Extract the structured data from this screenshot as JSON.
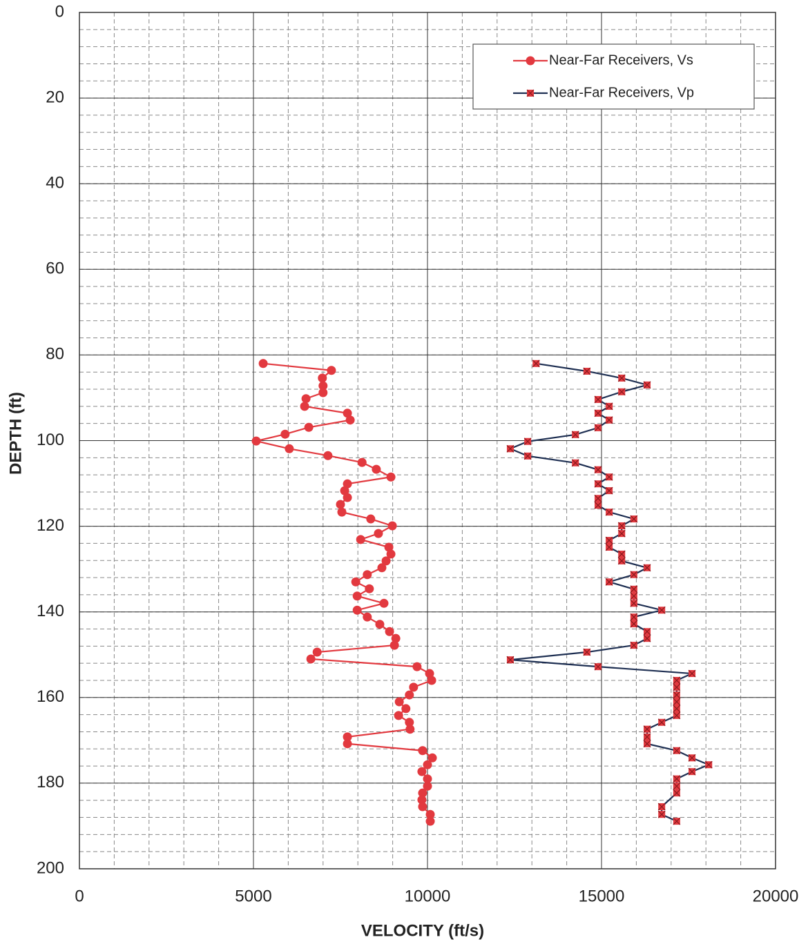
{
  "chart_data": {
    "type": "line",
    "x_label": "VELOCITY (ft/s)",
    "y_label": "DEPTH (ft)",
    "xlim": [
      0,
      20000
    ],
    "xticks": [
      0,
      5000,
      10000,
      15000,
      20000
    ],
    "ylim": [
      0,
      200
    ],
    "yticks": [
      0,
      20,
      40,
      60,
      80,
      100,
      120,
      140,
      160,
      180,
      200
    ],
    "y_inverted": true,
    "grid": true,
    "minor_grid": {
      "x": 1000,
      "y": 4
    },
    "legend": "top-right",
    "series": [
      {
        "name": "Near-Far Receivers, Vs",
        "color": "#e2393f",
        "marker": "circle",
        "marker_color": "#e2393f",
        "x": [
          5280,
          7240,
          6980,
          7000,
          7000,
          6510,
          6470,
          7700,
          7780,
          6590,
          5910,
          5080,
          6030,
          7140,
          8120,
          8530,
          8950,
          7700,
          7620,
          7700,
          7500,
          7540,
          8370,
          8990,
          8590,
          8080,
          8890,
          8950,
          8810,
          8690,
          8270,
          7940,
          8330,
          7980,
          8750,
          7980,
          8270,
          8630,
          8910,
          9090,
          9050,
          6830,
          6650,
          9700,
          10060,
          10120,
          9600,
          9480,
          9190,
          9380,
          9170,
          9480,
          9500,
          7700,
          7700,
          9860,
          10140,
          10000,
          9840,
          10000,
          10000,
          9860,
          9840,
          9860,
          10080,
          10080
        ],
        "y": [
          82.0,
          83.6,
          85.4,
          87.2,
          88.8,
          90.2,
          92.0,
          93.6,
          95.2,
          96.9,
          98.5,
          100.1,
          101.9,
          103.5,
          105.1,
          106.7,
          108.5,
          110.1,
          111.7,
          113.3,
          114.9,
          116.7,
          118.3,
          119.9,
          121.7,
          123.1,
          124.9,
          126.5,
          128.1,
          129.7,
          131.3,
          133.0,
          134.6,
          136.3,
          138.0,
          139.6,
          141.2,
          142.9,
          144.6,
          146.2,
          147.8,
          149.4,
          151.0,
          152.8,
          154.4,
          156.0,
          157.6,
          159.4,
          161.0,
          162.6,
          164.2,
          165.8,
          167.4,
          169.2,
          170.8,
          172.4,
          174.1,
          175.7,
          177.3,
          179.0,
          180.7,
          182.3,
          183.9,
          185.5,
          187.3,
          188.9
        ]
      },
      {
        "name": "Near-Far Receivers, Vp",
        "color": "#1e2f52",
        "marker": "x-square",
        "marker_color": "#e2393f",
        "x": [
          13120,
          14580,
          15580,
          16310,
          15580,
          14900,
          15220,
          14900,
          15220,
          14900,
          14250,
          12880,
          12380,
          12880,
          14250,
          14900,
          15220,
          14900,
          15220,
          14900,
          14900,
          15220,
          15930,
          15580,
          15580,
          15220,
          15220,
          15580,
          15580,
          16310,
          15930,
          15220,
          15930,
          15930,
          15930,
          16730,
          15930,
          15930,
          16310,
          16310,
          15930,
          14580,
          12380,
          14900,
          17600,
          17160,
          17160,
          17160,
          17160,
          17160,
          17160,
          16730,
          16310,
          16310,
          16310,
          17160,
          17600,
          18080,
          17600,
          17160,
          17160,
          17160,
          16730,
          16730,
          17160
        ],
        "y": [
          82.0,
          83.8,
          85.4,
          87.0,
          88.6,
          90.4,
          92.0,
          93.6,
          95.2,
          97.0,
          98.6,
          100.2,
          101.9,
          103.6,
          105.2,
          106.8,
          108.5,
          110.1,
          111.7,
          113.5,
          115.1,
          116.7,
          118.3,
          119.9,
          121.7,
          123.3,
          124.9,
          126.5,
          128.1,
          129.7,
          131.3,
          133.0,
          134.7,
          136.3,
          138.0,
          139.6,
          141.2,
          142.8,
          144.6,
          146.2,
          147.8,
          149.4,
          151.2,
          152.8,
          154.4,
          156.0,
          157.6,
          159.4,
          161.0,
          162.6,
          164.2,
          165.8,
          167.4,
          169.2,
          170.8,
          172.4,
          174.1,
          175.7,
          177.3,
          179.0,
          180.7,
          182.3,
          185.5,
          187.3,
          188.9
        ]
      }
    ]
  }
}
